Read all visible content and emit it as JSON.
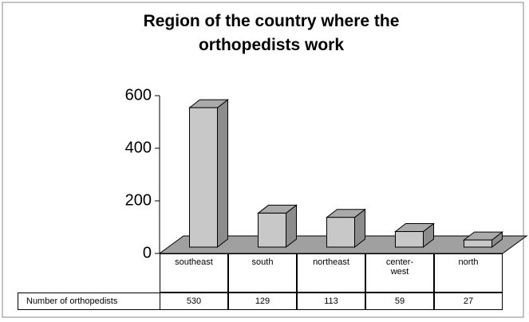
{
  "chart_data": {
    "type": "bar",
    "title": "Region of the country where the orthopedists work",
    "categories": [
      "southeast",
      "south",
      "northeast",
      "center-west",
      "north"
    ],
    "series": [
      {
        "name": "Number of orthopedists",
        "color": "#c8c8c8",
        "values": [
          530,
          129,
          113,
          59,
          27
        ]
      }
    ],
    "ylim": [
      0,
      600
    ],
    "yticks": [
      0,
      200,
      400,
      600
    ]
  }
}
